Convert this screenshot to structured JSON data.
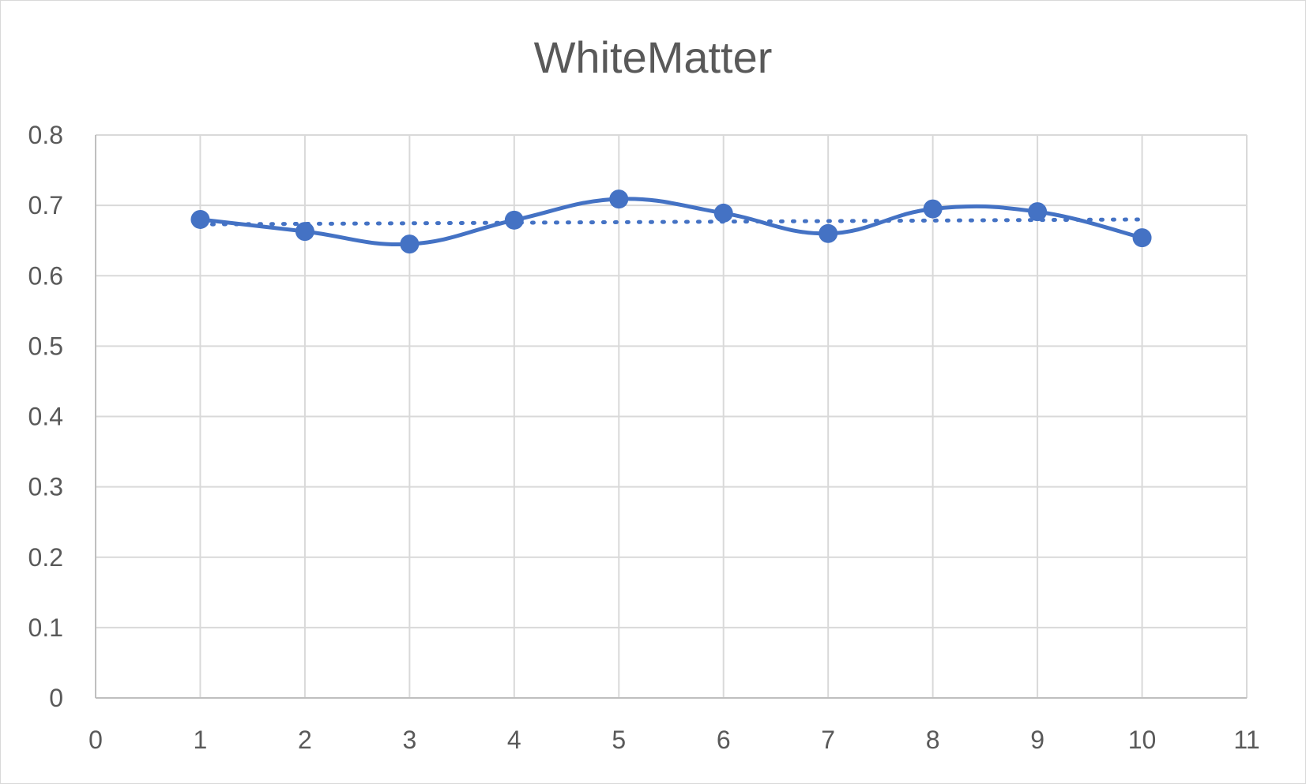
{
  "chart_data": {
    "type": "scatter",
    "title": "WhiteMatter",
    "xlabel": "",
    "ylabel": "",
    "xlim": [
      0,
      11
    ],
    "ylim": [
      0,
      0.8
    ],
    "x_ticks": [
      0,
      1,
      2,
      3,
      4,
      5,
      6,
      7,
      8,
      9,
      10,
      11
    ],
    "y_ticks": [
      0,
      0.1,
      0.2,
      0.3,
      0.4,
      0.5,
      0.6,
      0.7,
      0.8
    ],
    "grid": true,
    "legend": "none",
    "series": [
      {
        "x": [
          1,
          2,
          3,
          4,
          5,
          6,
          7,
          8,
          9,
          10
        ],
        "y": [
          0.68,
          0.663,
          0.645,
          0.679,
          0.709,
          0.689,
          0.66,
          0.695,
          0.691,
          0.654
        ],
        "style": "smooth-line-markers",
        "color": "#4472c4",
        "trendline": {
          "type": "linear",
          "style": "dotted",
          "y_start": 0.673,
          "y_end": 0.68
        }
      }
    ]
  }
}
